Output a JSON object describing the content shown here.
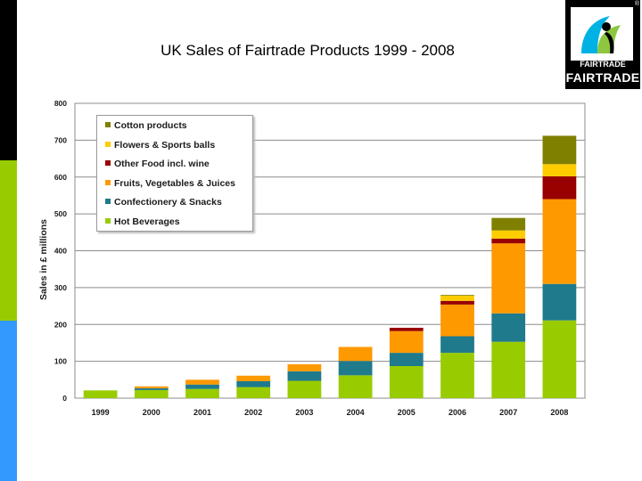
{
  "slide": {
    "title": "UK Sales of Fairtrade Products 1999 - 2008"
  },
  "logo": {
    "label_small": "FAIRTRADE",
    "label_big": "FAIRTRADE",
    "registered": "®",
    "colors": [
      "#000000",
      "#00b2e3",
      "#8dc63f"
    ]
  },
  "chart_data": {
    "type": "bar",
    "stacked": true,
    "title": "",
    "xlabel": "",
    "ylabel": "Sales in £ millions",
    "ylim": [
      0,
      800
    ],
    "yticks": [
      0,
      100,
      200,
      300,
      400,
      500,
      600,
      700,
      800
    ],
    "grid": true,
    "legend_position": "top-left",
    "categories": [
      "1999",
      "2000",
      "2001",
      "2002",
      "2003",
      "2004",
      "2005",
      "2006",
      "2007",
      "2008"
    ],
    "series": [
      {
        "name": "Hot Beverages",
        "color": "#99cc00",
        "values": [
          21,
          22,
          25,
          30,
          47,
          62,
          87,
          123,
          153,
          211
        ]
      },
      {
        "name": "Confectionery & Snacks",
        "color": "#1f7a8c",
        "values": [
          0,
          5,
          12,
          16,
          26,
          39,
          36,
          45,
          77,
          99
        ]
      },
      {
        "name": "Fruits, Vegetables & Juices",
        "color": "#ff9900",
        "values": [
          0,
          5,
          13,
          15,
          19,
          38,
          59,
          86,
          190,
          230
        ]
      },
      {
        "name": "Other Food incl. wine",
        "color": "#990000",
        "values": [
          0,
          0,
          0,
          0,
          0,
          0,
          9,
          10,
          13,
          62
        ]
      },
      {
        "name": "Flowers & Sports balls",
        "color": "#ffcc00",
        "values": [
          0,
          0,
          0,
          0,
          0,
          0,
          0,
          14,
          22,
          33
        ]
      },
      {
        "name": "Cotton products",
        "color": "#808000",
        "values": [
          0,
          0,
          0,
          0,
          0,
          0,
          0,
          2,
          34,
          77
        ]
      }
    ]
  }
}
